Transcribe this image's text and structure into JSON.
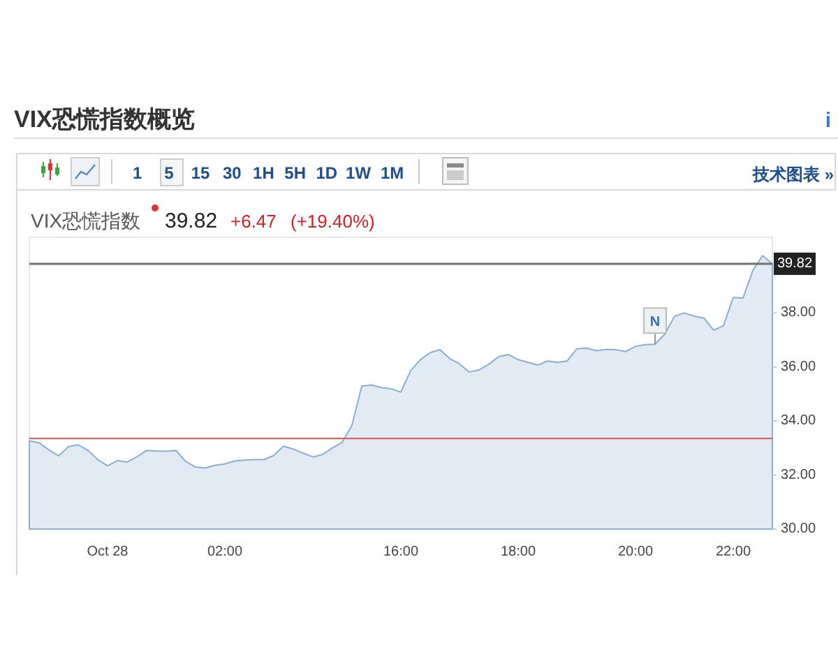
{
  "chart_data": {
    "type": "area",
    "title": "VIX恐慌指数概览",
    "subtitle": "VIX恐慌指数",
    "annotations": [
      "1 5 15 30 1H 5H 1D 1W 1M",
      "技术图表 »",
      "i",
      "39.82",
      "+6.47",
      "(+19.40%)",
      "N"
    ],
    "categories": [
      null,
      null,
      null,
      null,
      null,
      null,
      null,
      null,
      "Oct 28",
      null,
      null,
      null,
      null,
      null,
      null,
      null,
      null,
      null,
      null,
      null,
      "02:00",
      null,
      null,
      null,
      null,
      null,
      null,
      null,
      null,
      null,
      null,
      null,
      null,
      null,
      null,
      null,
      null,
      null,
      "16:00",
      null,
      null,
      null,
      null,
      null,
      null,
      null,
      null,
      null,
      null,
      null,
      "18:00",
      null,
      null,
      null,
      null,
      null,
      null,
      null,
      null,
      null,
      null,
      null,
      "20:00",
      null,
      null,
      null,
      null,
      null,
      null,
      null,
      null,
      null,
      "22:00",
      null,
      null,
      null,
      null
    ],
    "series": [
      {
        "color": "#8aaed0",
        "values": [
          33.26,
          33.19,
          32.93,
          32.71,
          33.05,
          33.12,
          32.91,
          32.57,
          32.34,
          32.53,
          32.48,
          32.67,
          32.91,
          32.89,
          32.88,
          32.91,
          32.5,
          32.29,
          32.26,
          32.36,
          32.41,
          32.52,
          32.55,
          32.57,
          32.57,
          32.72,
          33.07,
          32.96,
          32.81,
          32.67,
          32.76,
          33.0,
          33.21,
          33.84,
          35.29,
          35.33,
          35.24,
          35.19,
          35.07,
          35.86,
          36.27,
          36.53,
          36.64,
          36.31,
          36.12,
          35.81,
          35.89,
          36.1,
          36.38,
          36.46,
          36.27,
          36.17,
          36.07,
          36.22,
          36.17,
          36.22,
          36.67,
          36.7,
          36.6,
          36.65,
          36.64,
          36.57,
          36.76,
          36.83,
          36.84,
          37.22,
          37.88,
          38.0,
          37.88,
          37.81,
          37.36,
          37.53,
          38.57,
          38.55,
          39.57,
          40.12,
          39.82
        ]
      }
    ],
    "ylim": [
      30,
      40.8
    ],
    "yticks": [
      {
        "value": 30,
        "label": "30.00"
      },
      {
        "value": 32,
        "label": "32.00"
      },
      {
        "value": 34,
        "label": "34.00"
      },
      {
        "value": 36,
        "label": "36.00"
      },
      {
        "value": 38,
        "label": "38.00"
      }
    ],
    "ref_lines": [
      {
        "axis": "y",
        "value": 39.82,
        "label": "39.82",
        "color": "#707070"
      },
      {
        "axis": "y",
        "value": 33.35,
        "color": "#d9534f"
      }
    ],
    "grid": false
  }
}
